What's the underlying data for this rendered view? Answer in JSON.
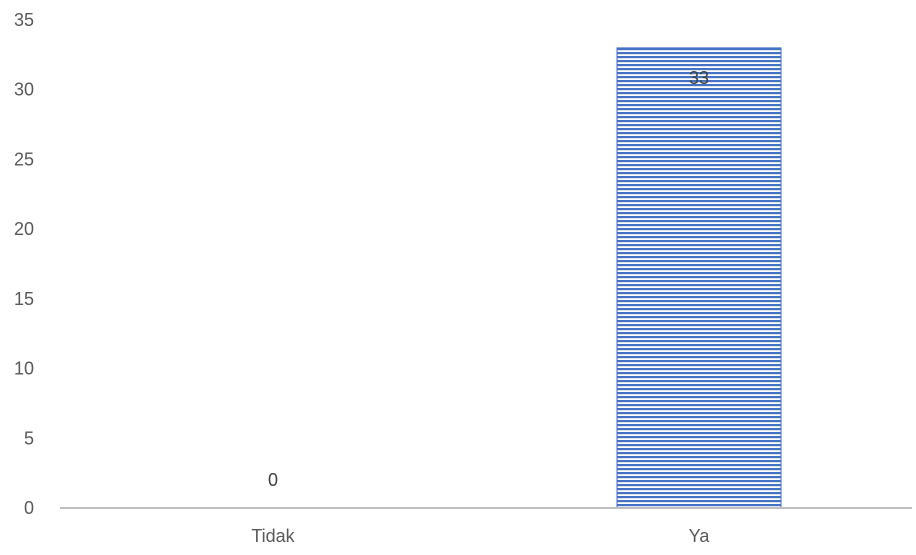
{
  "chart_data": {
    "type": "bar",
    "categories": [
      "Tidak",
      "Ya"
    ],
    "values": [
      0,
      33
    ],
    "data_labels": [
      "0",
      "33"
    ],
    "title": "",
    "xlabel": "",
    "ylabel": "",
    "ylim": [
      0,
      35
    ],
    "yticks": [
      0,
      5,
      10,
      15,
      20,
      25,
      30,
      35
    ],
    "ytick_labels": [
      "0",
      "5",
      "10",
      "15",
      "20",
      "25",
      "30",
      "35"
    ],
    "grid": false,
    "legend": "none",
    "bar_color": "#4472C4",
    "bar_pattern": "horizontal-stripes",
    "axis_color": "#BFBFBF"
  }
}
